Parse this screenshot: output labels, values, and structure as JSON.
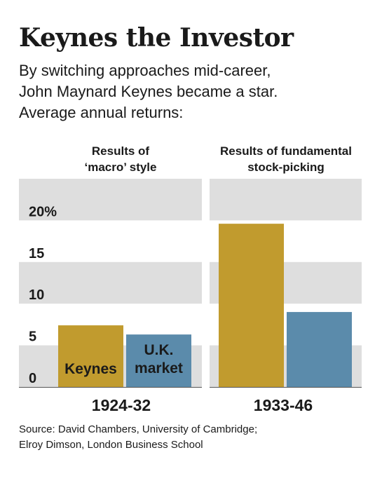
{
  "title": "Keynes the Investor",
  "subtitle": [
    "By switching approaches mid-career,",
    "John Maynard Keynes became a star.",
    "Average annual returns:"
  ],
  "source": [
    "Source: David Chambers, University of Cambridge;",
    "Elroy Dimson, London Business School"
  ],
  "colors": {
    "keynes": "#c19b2e",
    "market": "#5b8bab",
    "band": "#dedede"
  },
  "chart_data": {
    "type": "bar",
    "ylim": [
      0,
      25
    ],
    "y_ticks": [
      0,
      5,
      10,
      15,
      20
    ],
    "y_tick_labels": [
      "0",
      "5",
      "10",
      "15",
      "20%"
    ],
    "categories": [
      "1924-32",
      "1933-46"
    ],
    "panel_titles": [
      [
        "Results of",
        "‘macro’ style"
      ],
      [
        "Results of fundamental",
        "stock-picking"
      ]
    ],
    "series": [
      {
        "name": "Keynes",
        "values": [
          7.4,
          19.6
        ]
      },
      {
        "name": "U.K. market",
        "values": [
          6.3,
          9.0
        ]
      }
    ],
    "series_labels": [
      [
        "Keynes"
      ],
      [
        "U.K.",
        "market"
      ]
    ]
  }
}
